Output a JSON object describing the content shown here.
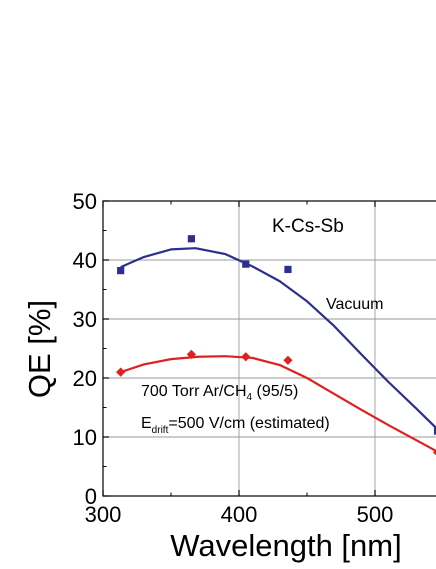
{
  "chart_data": {
    "type": "scatter",
    "title": "",
    "xlabel": "Wavelength [nm]",
    "ylabel": "QE [%]",
    "xlim": [
      300,
      550
    ],
    "ylim": [
      0,
      50
    ],
    "x_ticks": [
      300,
      400,
      500
    ],
    "y_ticks": [
      0,
      10,
      20,
      30,
      40,
      50
    ],
    "x_tick_labels": [
      "300",
      "400",
      "500"
    ],
    "y_tick_labels": [
      "0",
      "10",
      "20",
      "30",
      "40",
      "50"
    ],
    "grid": true,
    "annotations": {
      "photocathode": "K-Cs-Sb",
      "vacuum": "Vacuum",
      "gas_prefix": "700 Torr Ar/CH",
      "gas_subscript": "4",
      "gas_suffix": " (95/5)",
      "field_prefix": "E",
      "field_subscript": "drift",
      "field_suffix": "=500 V/cm (estimated)"
    },
    "series": [
      {
        "name": "Vacuum",
        "marker": "square",
        "color": "#2b2f8f",
        "points": [
          {
            "x": 313,
            "y": 38.2
          },
          {
            "x": 365,
            "y": 43.6
          },
          {
            "x": 405,
            "y": 39.3
          },
          {
            "x": 436,
            "y": 38.4
          },
          {
            "x": 546,
            "y": 11.0
          }
        ],
        "fit": [
          {
            "x": 313,
            "y": 38.8
          },
          {
            "x": 330,
            "y": 40.5
          },
          {
            "x": 350,
            "y": 41.8
          },
          {
            "x": 368,
            "y": 42.0
          },
          {
            "x": 390,
            "y": 41.0
          },
          {
            "x": 410,
            "y": 38.9
          },
          {
            "x": 430,
            "y": 36.4
          },
          {
            "x": 450,
            "y": 33.0
          },
          {
            "x": 470,
            "y": 28.8
          },
          {
            "x": 490,
            "y": 24.0
          },
          {
            "x": 510,
            "y": 19.3
          },
          {
            "x": 530,
            "y": 14.9
          },
          {
            "x": 546,
            "y": 11.3
          }
        ]
      },
      {
        "name": "700 Torr Ar/CH4 (95/5)",
        "marker": "diamond",
        "color": "#e02020",
        "points": [
          {
            "x": 313,
            "y": 21.0
          },
          {
            "x": 365,
            "y": 24.0
          },
          {
            "x": 405,
            "y": 23.6
          },
          {
            "x": 436,
            "y": 23.0
          },
          {
            "x": 546,
            "y": 7.4
          }
        ],
        "fit": [
          {
            "x": 313,
            "y": 21.0
          },
          {
            "x": 330,
            "y": 22.3
          },
          {
            "x": 350,
            "y": 23.2
          },
          {
            "x": 370,
            "y": 23.6
          },
          {
            "x": 390,
            "y": 23.7
          },
          {
            "x": 410,
            "y": 23.4
          },
          {
            "x": 430,
            "y": 22.2
          },
          {
            "x": 450,
            "y": 20.0
          },
          {
            "x": 470,
            "y": 17.3
          },
          {
            "x": 490,
            "y": 14.6
          },
          {
            "x": 510,
            "y": 12.0
          },
          {
            "x": 530,
            "y": 9.5
          },
          {
            "x": 546,
            "y": 7.5
          }
        ]
      }
    ]
  }
}
